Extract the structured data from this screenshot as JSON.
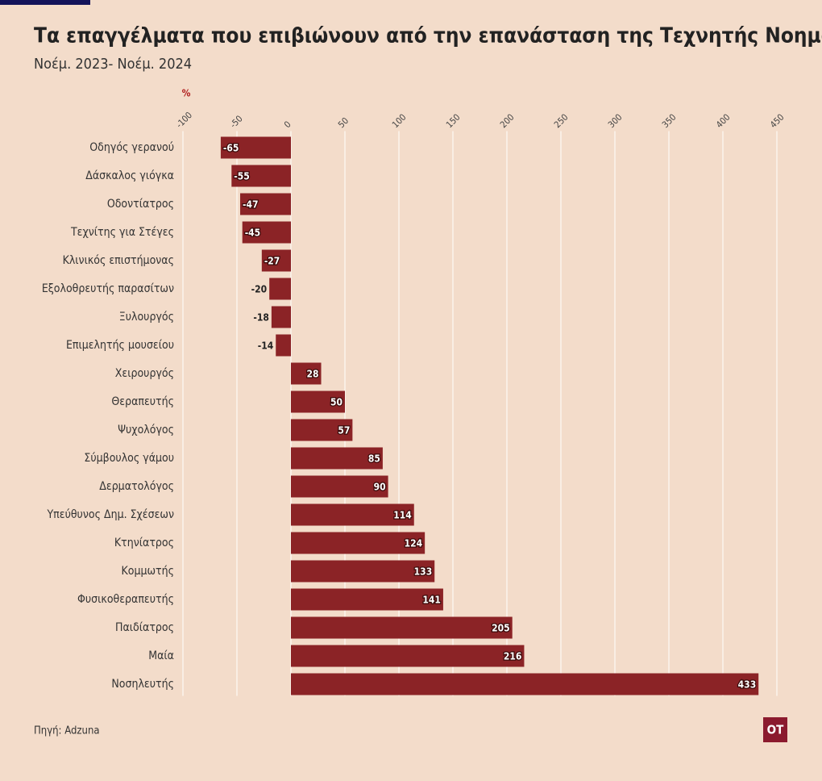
{
  "chart_data": {
    "type": "bar",
    "orientation": "horizontal",
    "title": "Τα επαγγέλματα που επιβιώνουν από την επανάσταση της Τεχνητής Νοημοσύνης",
    "subtitle": "Νοέμ. 2023- Νοέμ. 2024",
    "unit_label": "%",
    "categories": [
      "Οδηγός γερανού",
      "Δάσκαλος γιόγκα",
      "Οδοντίατρος",
      "Τεχνίτης για Στέγες",
      "Κλινικός επιστήμονας",
      "Εξολοθρευτής παρασίτων",
      "Ξυλουργός",
      "Επιμελητής μουσείου",
      "Χειρουργός",
      "Θεραπευτής",
      "Ψυχολόγος",
      "Σύμβουλος γάμου",
      "Δερματολόγος",
      "Υπεύθυνος Δημ. Σχέσεων",
      "Κτηνίατρος",
      "Κομμωτής",
      "Φυσικοθεραπευτής",
      "Παιδίατρος",
      "Μαία",
      "Νοσηλευτής"
    ],
    "values": [
      -65,
      -55,
      -47,
      -45,
      -27,
      -20,
      -18,
      -14,
      28,
      50,
      57,
      85,
      90,
      114,
      124,
      133,
      141,
      205,
      216,
      433
    ],
    "color": "#8b2326",
    "xlim": [
      -100,
      450
    ],
    "xticks": [
      -100,
      -50,
      0,
      50,
      100,
      150,
      200,
      250,
      300,
      350,
      400,
      450
    ],
    "grid": true,
    "source": "Πηγή: Adzuna",
    "logo": "OT"
  }
}
